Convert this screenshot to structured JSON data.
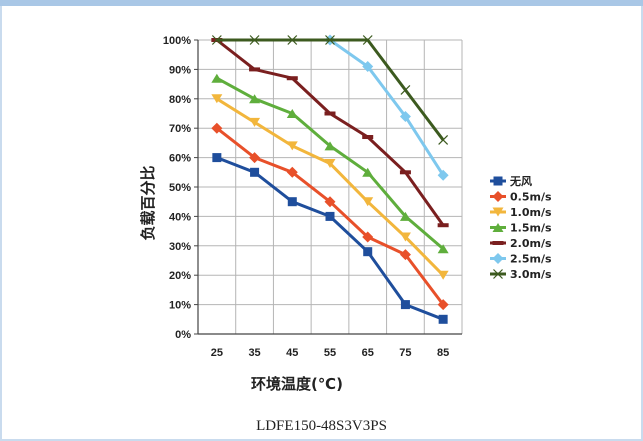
{
  "caption": "LDFE150-48S3V3PS",
  "chart_data": {
    "type": "line",
    "x": [
      25,
      35,
      45,
      55,
      65,
      75,
      85
    ],
    "xlabel": "环境温度(℃)",
    "ylabel": "负载百分比",
    "ylim": [
      0,
      100
    ],
    "y_tick_labels": [
      "0%",
      "10%",
      "20%",
      "30%",
      "40%",
      "50%",
      "60%",
      "70%",
      "80%",
      "90%",
      "100%"
    ],
    "grid": true,
    "legend_position": "right",
    "series": [
      {
        "name": "无风",
        "color": "#1f4e9c",
        "marker": "square",
        "values": [
          60,
          55,
          45,
          40,
          28,
          10,
          5
        ]
      },
      {
        "name": "0.5m/s",
        "color": "#e8502a",
        "marker": "diamond",
        "values": [
          70,
          60,
          55,
          45,
          33,
          27,
          10
        ]
      },
      {
        "name": "1.0m/s",
        "color": "#f2b63c",
        "marker": "triangle-down",
        "values": [
          80,
          72,
          64,
          58,
          45,
          33,
          20
        ]
      },
      {
        "name": "1.5m/s",
        "color": "#5fae3c",
        "marker": "triangle-up",
        "values": [
          87,
          80,
          75,
          64,
          55,
          40,
          29
        ]
      },
      {
        "name": "2.0m/s",
        "color": "#7a1f1f",
        "marker": "dash",
        "values": [
          100,
          90,
          87,
          75,
          67,
          55,
          37
        ]
      },
      {
        "name": "2.5m/s",
        "color": "#7ec8ee",
        "marker": "diamond",
        "values": [
          null,
          null,
          null,
          100,
          91,
          74,
          54
        ]
      },
      {
        "name": "3.0m/s",
        "color": "#3c5a1f",
        "marker": "bowtie",
        "values": [
          100,
          100,
          100,
          100,
          100,
          83,
          66
        ]
      }
    ]
  }
}
